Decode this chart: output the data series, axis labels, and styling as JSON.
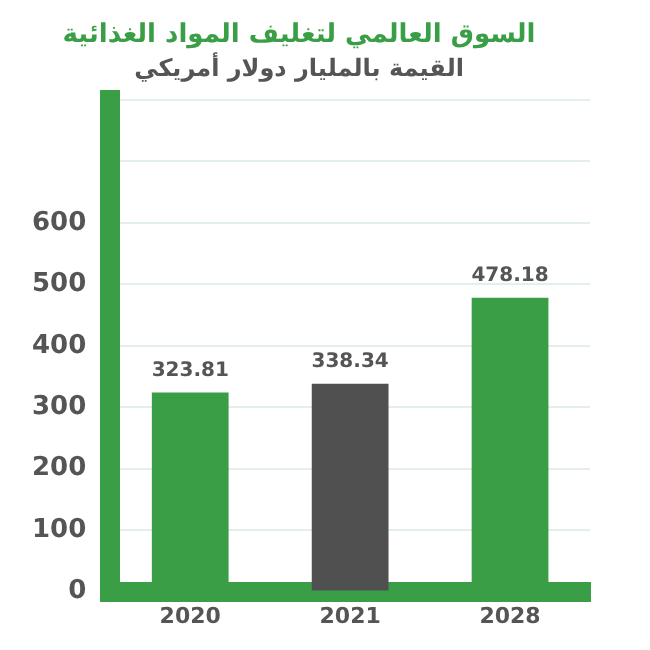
{
  "chart_data": {
    "type": "bar",
    "title": "السوق العالمي لتغليف المواد الغذائية",
    "subtitle": "القيمة بالمليار دولار أمريكي",
    "categories": [
      "2020",
      "2021",
      "2028"
    ],
    "values": [
      323.81,
      338.34,
      478.18
    ],
    "colors": [
      "#3a9e47",
      "#505050",
      "#3a9e47"
    ],
    "ylim": [
      0,
      800
    ],
    "yticks": [
      0,
      100,
      200,
      300,
      400,
      500,
      600,
      {
        "value": 700,
        "label": null
      },
      {
        "value": 800,
        "label": null
      }
    ],
    "grid": "y",
    "data_labels": true,
    "legend": false
  }
}
